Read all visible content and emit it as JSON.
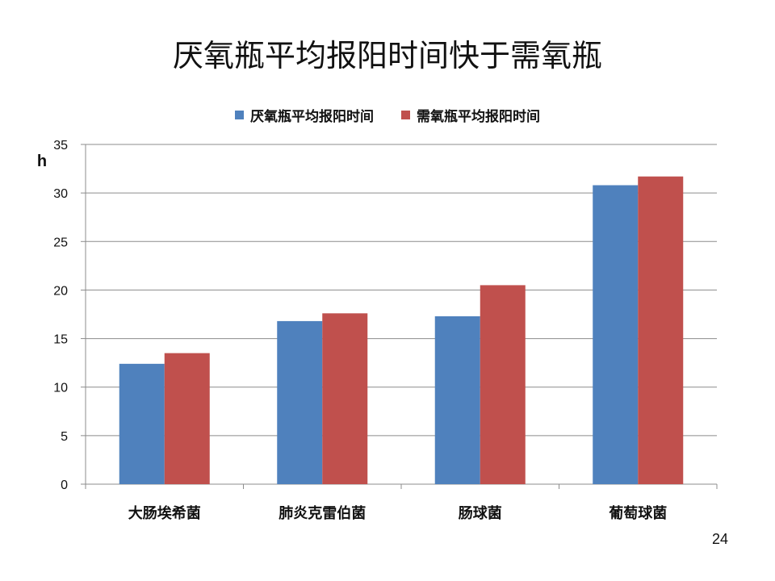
{
  "slide": {
    "title": "厌氧瓶平均报阳时间快于需氧瓶",
    "page_number": "24"
  },
  "colors": {
    "series_anaerobic": "#4F81BD",
    "series_aerobic": "#C0504D",
    "gridline": "#8C8C8C",
    "axis": "#8C8C8C"
  },
  "chart_data": {
    "type": "bar",
    "categories": [
      "大肠埃希菌",
      "肺炎克雷伯菌",
      "肠球菌",
      "葡萄球菌"
    ],
    "series": [
      {
        "name": "厌氧瓶平均报阳时间",
        "values": [
          12.4,
          16.8,
          17.3,
          30.8
        ]
      },
      {
        "name": "需氧瓶平均报阳时间",
        "values": [
          13.5,
          17.6,
          20.5,
          31.7
        ]
      }
    ],
    "ylabel": "h",
    "ylim": [
      0,
      35
    ],
    "yticks": [
      "0",
      "5",
      "10",
      "15",
      "20",
      "25",
      "30",
      "35"
    ],
    "grid": true,
    "legend_position": "top"
  }
}
